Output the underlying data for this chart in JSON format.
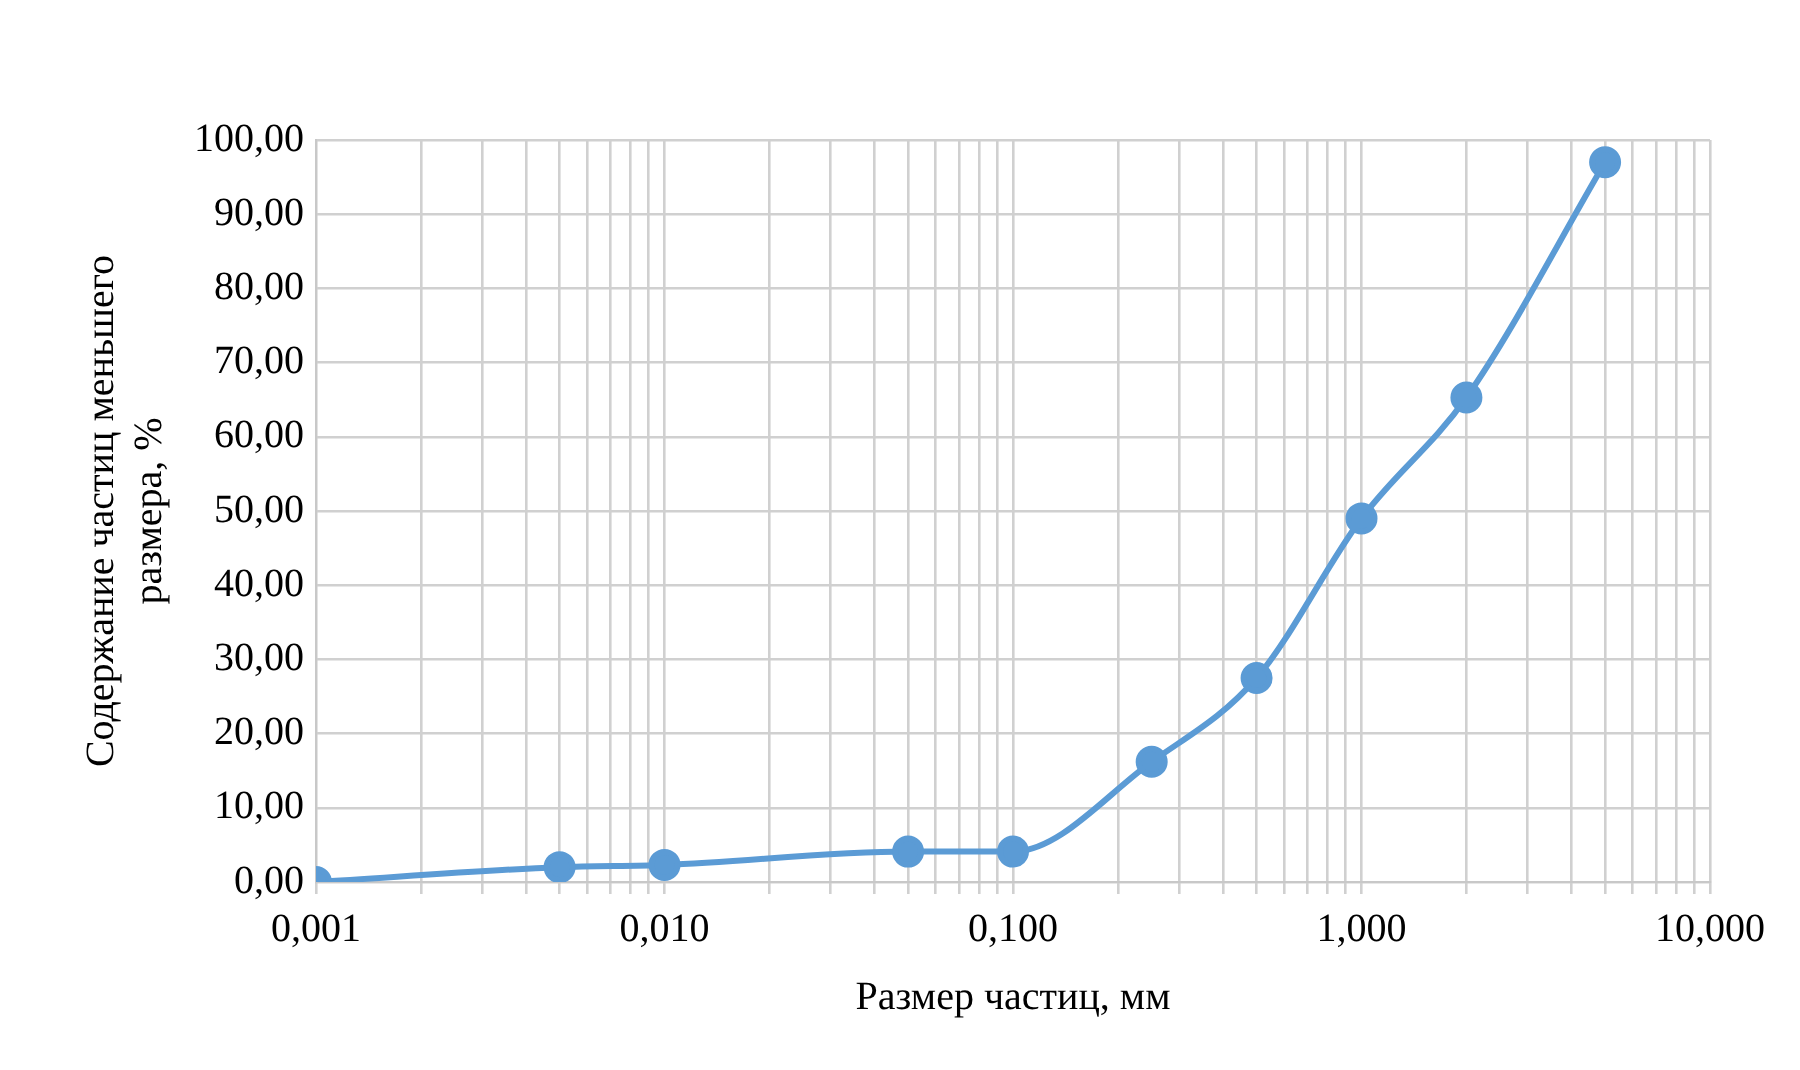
{
  "chart_data": {
    "type": "line",
    "xlabel": "Размер частиц, мм",
    "ylabel": "Содержание частиц меньшего размера, %",
    "log": "x",
    "x": [
      0.001,
      0.005,
      0.01,
      0.05,
      0.1,
      0.25,
      0.5,
      1,
      2,
      5
    ],
    "series": [
      {
        "color": "#5b9bd5",
        "values": [
          0,
          2.0,
          2.3,
          4.1,
          4.1,
          16.2,
          27.5,
          49,
          65.3,
          97
        ]
      }
    ],
    "xlim": [
      0.001,
      10
    ],
    "xticks": [
      {
        "value": 0.001,
        "label": "0,001"
      },
      {
        "value": 0.002,
        "label": null
      },
      {
        "value": 0.003,
        "label": null
      },
      {
        "value": 0.004,
        "label": null
      },
      {
        "value": 0.005,
        "label": null
      },
      {
        "value": 0.006,
        "label": null
      },
      {
        "value": 0.007,
        "label": null
      },
      {
        "value": 0.008,
        "label": null
      },
      {
        "value": 0.009,
        "label": null
      },
      {
        "value": 0.01,
        "label": "0,010"
      },
      {
        "value": 0.02,
        "label": null
      },
      {
        "value": 0.03,
        "label": null
      },
      {
        "value": 0.04,
        "label": null
      },
      {
        "value": 0.05,
        "label": null
      },
      {
        "value": 0.06,
        "label": null
      },
      {
        "value": 0.07,
        "label": null
      },
      {
        "value": 0.08,
        "label": null
      },
      {
        "value": 0.09,
        "label": null
      },
      {
        "value": 0.1,
        "label": "0,100"
      },
      {
        "value": 0.2,
        "label": null
      },
      {
        "value": 0.3,
        "label": null
      },
      {
        "value": 0.4,
        "label": null
      },
      {
        "value": 0.5,
        "label": null
      },
      {
        "value": 0.6,
        "label": null
      },
      {
        "value": 0.7,
        "label": null
      },
      {
        "value": 0.8,
        "label": null
      },
      {
        "value": 0.9,
        "label": null
      },
      {
        "value": 1,
        "label": "1,000"
      },
      {
        "value": 2,
        "label": null
      },
      {
        "value": 3,
        "label": null
      },
      {
        "value": 4,
        "label": null
      },
      {
        "value": 5,
        "label": null
      },
      {
        "value": 6,
        "label": null
      },
      {
        "value": 7,
        "label": null
      },
      {
        "value": 8,
        "label": null
      },
      {
        "value": 9,
        "label": null
      },
      {
        "value": 10,
        "label": "10,000"
      }
    ],
    "ylim": [
      0,
      100
    ],
    "yticks": [
      {
        "value": 0,
        "label": "0,00"
      },
      {
        "value": 10,
        "label": "10,00"
      },
      {
        "value": 20,
        "label": "20,00"
      },
      {
        "value": 30,
        "label": "30,00"
      },
      {
        "value": 40,
        "label": "40,00"
      },
      {
        "value": 50,
        "label": "50,00"
      },
      {
        "value": 60,
        "label": "60,00"
      },
      {
        "value": 70,
        "label": "70,00"
      },
      {
        "value": 80,
        "label": "80,00"
      },
      {
        "value": 90,
        "label": "90,00"
      },
      {
        "value": 100,
        "label": "100,00"
      }
    ],
    "grid": true,
    "marker": "circle",
    "line_style": "solid"
  }
}
